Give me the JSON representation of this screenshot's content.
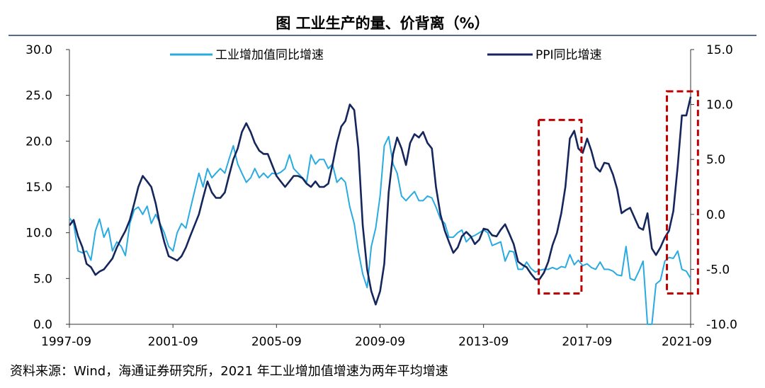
{
  "chart_data": {
    "type": "line",
    "title": "图  工业生产的量、价背离（%）",
    "source": "资料来源：Wind，海通证券研究所，2021 年工业增加值增速为两年平均增速",
    "x_ticks": [
      "1997-09",
      "2001-09",
      "2005-09",
      "2009-09",
      "2013-09",
      "2017-09",
      "2021-09"
    ],
    "x_tick_years": [
      1997.667,
      2001.667,
      2005.667,
      2009.667,
      2013.667,
      2017.667,
      2021.667
    ],
    "xlim": [
      1997.667,
      2021.667
    ],
    "y_left": {
      "label": "工业增加值同比增速",
      "ylim": [
        0,
        30
      ],
      "ticks": [
        "0.0",
        "5.0",
        "10.0",
        "15.0",
        "20.0",
        "25.0",
        "30.0"
      ]
    },
    "y_right": {
      "label": "PPI同比增速",
      "ylim": [
        -10,
        15
      ],
      "ticks": [
        "-10.0",
        "-5.0",
        "0.0",
        "5.0",
        "10.0",
        "15.0"
      ]
    },
    "series": [
      {
        "name": "工业增加值同比增速",
        "axis": "left",
        "color": "#29ABE2",
        "points": [
          [
            1997.67,
            11.6
          ],
          [
            1997.83,
            11.0
          ],
          [
            1998.0,
            8.0
          ],
          [
            1998.17,
            7.8
          ],
          [
            1998.33,
            8.0
          ],
          [
            1998.5,
            7.0
          ],
          [
            1998.67,
            10.2
          ],
          [
            1998.83,
            11.5
          ],
          [
            1999.0,
            9.5
          ],
          [
            1999.17,
            10.5
          ],
          [
            1999.33,
            8.0
          ],
          [
            1999.5,
            9.0
          ],
          [
            1999.67,
            8.5
          ],
          [
            1999.83,
            7.5
          ],
          [
            2000.0,
            11.0
          ],
          [
            2000.17,
            12.5
          ],
          [
            2000.33,
            12.8
          ],
          [
            2000.5,
            12.0
          ],
          [
            2000.67,
            12.9
          ],
          [
            2000.83,
            11.0
          ],
          [
            2001.0,
            12.0
          ],
          [
            2001.17,
            11.0
          ],
          [
            2001.33,
            10.0
          ],
          [
            2001.5,
            8.5
          ],
          [
            2001.67,
            8.0
          ],
          [
            2001.83,
            10.0
          ],
          [
            2002.0,
            11.0
          ],
          [
            2002.17,
            10.5
          ],
          [
            2002.33,
            12.5
          ],
          [
            2002.5,
            14.5
          ],
          [
            2002.67,
            16.5
          ],
          [
            2002.83,
            15.0
          ],
          [
            2003.0,
            17.0
          ],
          [
            2003.17,
            16.0
          ],
          [
            2003.33,
            16.5
          ],
          [
            2003.5,
            17.0
          ],
          [
            2003.67,
            16.5
          ],
          [
            2003.83,
            18.0
          ],
          [
            2004.0,
            19.5
          ],
          [
            2004.17,
            17.5
          ],
          [
            2004.33,
            16.5
          ],
          [
            2004.5,
            15.5
          ],
          [
            2004.67,
            16.0
          ],
          [
            2004.83,
            17.0
          ],
          [
            2005.0,
            16.0
          ],
          [
            2005.17,
            16.5
          ],
          [
            2005.33,
            16.0
          ],
          [
            2005.5,
            16.5
          ],
          [
            2005.67,
            16.4
          ],
          [
            2005.83,
            16.6
          ],
          [
            2006.0,
            17.0
          ],
          [
            2006.17,
            18.5
          ],
          [
            2006.33,
            17.0
          ],
          [
            2006.5,
            16.5
          ],
          [
            2006.67,
            16.0
          ],
          [
            2006.83,
            15.5
          ],
          [
            2007.0,
            18.5
          ],
          [
            2007.17,
            17.5
          ],
          [
            2007.33,
            18.0
          ],
          [
            2007.5,
            18.0
          ],
          [
            2007.67,
            17.0
          ],
          [
            2007.83,
            17.5
          ],
          [
            2008.0,
            15.5
          ],
          [
            2008.17,
            16.0
          ],
          [
            2008.33,
            15.5
          ],
          [
            2008.5,
            12.8
          ],
          [
            2008.67,
            11.0
          ],
          [
            2008.83,
            8.0
          ],
          [
            2009.0,
            5.5
          ],
          [
            2009.17,
            4.0
          ],
          [
            2009.33,
            8.5
          ],
          [
            2009.5,
            10.5
          ],
          [
            2009.67,
            14.0
          ],
          [
            2009.83,
            19.5
          ],
          [
            2010.0,
            20.5
          ],
          [
            2010.17,
            17.5
          ],
          [
            2010.33,
            16.5
          ],
          [
            2010.5,
            14.0
          ],
          [
            2010.67,
            13.5
          ],
          [
            2010.83,
            14.0
          ],
          [
            2011.0,
            14.5
          ],
          [
            2011.17,
            13.5
          ],
          [
            2011.33,
            13.5
          ],
          [
            2011.5,
            14.0
          ],
          [
            2011.67,
            13.8
          ],
          [
            2011.83,
            12.8
          ],
          [
            2012.0,
            11.5
          ],
          [
            2012.17,
            11.0
          ],
          [
            2012.33,
            9.5
          ],
          [
            2012.5,
            9.5
          ],
          [
            2012.67,
            10.0
          ],
          [
            2012.83,
            10.3
          ],
          [
            2013.0,
            9.0
          ],
          [
            2013.17,
            9.5
          ],
          [
            2013.33,
            9.7
          ],
          [
            2013.5,
            10.0
          ],
          [
            2013.67,
            10.3
          ],
          [
            2013.83,
            10.0
          ],
          [
            2014.0,
            8.6
          ],
          [
            2014.17,
            8.8
          ],
          [
            2014.33,
            9.0
          ],
          [
            2014.5,
            6.9
          ],
          [
            2014.67,
            8.0
          ],
          [
            2014.83,
            7.9
          ],
          [
            2015.0,
            6.0
          ],
          [
            2015.17,
            6.0
          ],
          [
            2015.33,
            6.8
          ],
          [
            2015.5,
            6.1
          ],
          [
            2015.67,
            5.7
          ],
          [
            2015.83,
            5.9
          ],
          [
            2016.0,
            6.0
          ],
          [
            2016.17,
            6.0
          ],
          [
            2016.33,
            6.2
          ],
          [
            2016.5,
            6.0
          ],
          [
            2016.67,
            6.3
          ],
          [
            2016.83,
            6.2
          ],
          [
            2017.0,
            7.6
          ],
          [
            2017.17,
            6.5
          ],
          [
            2017.33,
            7.0
          ],
          [
            2017.5,
            6.4
          ],
          [
            2017.67,
            6.6
          ],
          [
            2017.83,
            6.2
          ],
          [
            2018.0,
            6.0
          ],
          [
            2018.17,
            6.8
          ],
          [
            2018.33,
            6.0
          ],
          [
            2018.5,
            6.0
          ],
          [
            2018.67,
            5.8
          ],
          [
            2018.83,
            5.4
          ],
          [
            2019.0,
            5.3
          ],
          [
            2019.17,
            8.5
          ],
          [
            2019.33,
            5.0
          ],
          [
            2019.5,
            4.8
          ],
          [
            2019.67,
            5.8
          ],
          [
            2019.83,
            6.9
          ],
          [
            2020.0,
            0.0
          ],
          [
            2020.17,
            -1.1
          ],
          [
            2020.33,
            4.4
          ],
          [
            2020.5,
            4.8
          ],
          [
            2020.67,
            6.9
          ],
          [
            2020.83,
            7.3
          ],
          [
            2021.0,
            7.2
          ],
          [
            2021.17,
            8.0
          ],
          [
            2021.33,
            6.0
          ],
          [
            2021.5,
            5.8
          ],
          [
            2021.67,
            5.0
          ]
        ]
      },
      {
        "name": "PPI同比增速",
        "axis": "right",
        "color": "#14265C",
        "points": [
          [
            1997.67,
            -1.0
          ],
          [
            1997.83,
            -0.5
          ],
          [
            1998.0,
            -2.0
          ],
          [
            1998.17,
            -3.0
          ],
          [
            1998.33,
            -4.5
          ],
          [
            1998.5,
            -4.8
          ],
          [
            1998.67,
            -5.5
          ],
          [
            1998.83,
            -5.2
          ],
          [
            1999.0,
            -5.0
          ],
          [
            1999.17,
            -4.5
          ],
          [
            1999.33,
            -4.0
          ],
          [
            1999.5,
            -3.0
          ],
          [
            1999.67,
            -2.2
          ],
          [
            1999.83,
            -1.5
          ],
          [
            2000.0,
            -0.5
          ],
          [
            2000.17,
            1.0
          ],
          [
            2000.33,
            2.5
          ],
          [
            2000.5,
            3.5
          ],
          [
            2000.67,
            3.0
          ],
          [
            2000.83,
            2.5
          ],
          [
            2001.0,
            1.0
          ],
          [
            2001.17,
            -1.0
          ],
          [
            2001.33,
            -2.5
          ],
          [
            2001.5,
            -3.8
          ],
          [
            2001.67,
            -4.0
          ],
          [
            2001.83,
            -4.2
          ],
          [
            2002.0,
            -3.8
          ],
          [
            2002.17,
            -3.0
          ],
          [
            2002.33,
            -2.0
          ],
          [
            2002.5,
            -1.0
          ],
          [
            2002.67,
            0.0
          ],
          [
            2002.83,
            1.5
          ],
          [
            2003.0,
            3.0
          ],
          [
            2003.17,
            2.0
          ],
          [
            2003.33,
            1.5
          ],
          [
            2003.5,
            1.5
          ],
          [
            2003.67,
            2.0
          ],
          [
            2003.83,
            3.5
          ],
          [
            2004.0,
            5.0
          ],
          [
            2004.17,
            6.0
          ],
          [
            2004.33,
            7.5
          ],
          [
            2004.5,
            8.3
          ],
          [
            2004.67,
            7.5
          ],
          [
            2004.83,
            6.5
          ],
          [
            2005.0,
            5.8
          ],
          [
            2005.17,
            5.5
          ],
          [
            2005.33,
            5.5
          ],
          [
            2005.5,
            4.5
          ],
          [
            2005.67,
            3.5
          ],
          [
            2005.83,
            3.0
          ],
          [
            2006.0,
            2.5
          ],
          [
            2006.17,
            3.0
          ],
          [
            2006.33,
            3.5
          ],
          [
            2006.5,
            3.5
          ],
          [
            2006.67,
            3.3
          ],
          [
            2006.83,
            2.8
          ],
          [
            2007.0,
            2.5
          ],
          [
            2007.17,
            3.0
          ],
          [
            2007.33,
            2.5
          ],
          [
            2007.5,
            2.5
          ],
          [
            2007.67,
            2.8
          ],
          [
            2007.83,
            4.5
          ],
          [
            2008.0,
            6.5
          ],
          [
            2008.17,
            8.0
          ],
          [
            2008.33,
            8.5
          ],
          [
            2008.5,
            10.0
          ],
          [
            2008.67,
            9.5
          ],
          [
            2008.83,
            6.0
          ],
          [
            2009.0,
            -1.0
          ],
          [
            2009.17,
            -5.0
          ],
          [
            2009.33,
            -7.0
          ],
          [
            2009.5,
            -8.2
          ],
          [
            2009.67,
            -7.0
          ],
          [
            2009.83,
            -4.5
          ],
          [
            2010.0,
            2.0
          ],
          [
            2010.17,
            5.5
          ],
          [
            2010.33,
            7.0
          ],
          [
            2010.5,
            6.0
          ],
          [
            2010.67,
            4.5
          ],
          [
            2010.83,
            6.5
          ],
          [
            2011.0,
            7.3
          ],
          [
            2011.17,
            7.0
          ],
          [
            2011.33,
            7.5
          ],
          [
            2011.5,
            6.5
          ],
          [
            2011.67,
            6.0
          ],
          [
            2011.83,
            2.5
          ],
          [
            2012.0,
            0.0
          ],
          [
            2012.17,
            -1.5
          ],
          [
            2012.33,
            -2.5
          ],
          [
            2012.5,
            -3.5
          ],
          [
            2012.67,
            -3.0
          ],
          [
            2012.83,
            -2.0
          ],
          [
            2013.0,
            -1.6
          ],
          [
            2013.17,
            -2.0
          ],
          [
            2013.33,
            -2.7
          ],
          [
            2013.5,
            -2.3
          ],
          [
            2013.67,
            -1.3
          ],
          [
            2013.83,
            -1.4
          ],
          [
            2014.0,
            -1.9
          ],
          [
            2014.17,
            -2.0
          ],
          [
            2014.33,
            -1.4
          ],
          [
            2014.5,
            -0.9
          ],
          [
            2014.67,
            -1.8
          ],
          [
            2014.83,
            -2.7
          ],
          [
            2015.0,
            -4.3
          ],
          [
            2015.17,
            -4.6
          ],
          [
            2015.33,
            -4.8
          ],
          [
            2015.5,
            -5.4
          ],
          [
            2015.67,
            -5.9
          ],
          [
            2015.83,
            -5.9
          ],
          [
            2016.0,
            -5.3
          ],
          [
            2016.17,
            -4.3
          ],
          [
            2016.33,
            -2.8
          ],
          [
            2016.5,
            -1.7
          ],
          [
            2016.67,
            0.1
          ],
          [
            2016.83,
            2.5
          ],
          [
            2017.0,
            6.9
          ],
          [
            2017.17,
            7.6
          ],
          [
            2017.33,
            6.0
          ],
          [
            2017.5,
            5.6
          ],
          [
            2017.67,
            6.9
          ],
          [
            2017.83,
            5.8
          ],
          [
            2018.0,
            4.3
          ],
          [
            2018.17,
            3.9
          ],
          [
            2018.33,
            4.7
          ],
          [
            2018.5,
            4.6
          ],
          [
            2018.67,
            3.6
          ],
          [
            2018.83,
            2.3
          ],
          [
            2019.0,
            0.1
          ],
          [
            2019.17,
            0.4
          ],
          [
            2019.33,
            0.6
          ],
          [
            2019.5,
            -0.3
          ],
          [
            2019.67,
            -1.2
          ],
          [
            2019.83,
            -1.4
          ],
          [
            2020.0,
            0.1
          ],
          [
            2020.17,
            -3.1
          ],
          [
            2020.33,
            -3.7
          ],
          [
            2020.5,
            -3.0
          ],
          [
            2020.67,
            -2.1
          ],
          [
            2020.83,
            -1.5
          ],
          [
            2021.0,
            0.3
          ],
          [
            2021.17,
            4.4
          ],
          [
            2021.33,
            9.0
          ],
          [
            2021.5,
            9.0
          ],
          [
            2021.67,
            10.7
          ]
        ]
      }
    ],
    "annotations": [
      {
        "type": "dashed-box",
        "color": "#C00000",
        "x_range": [
          2015.8,
          2017.45
        ],
        "y_right_range": [
          -7.2,
          8.6
        ]
      },
      {
        "type": "dashed-box",
        "color": "#C00000",
        "x_range": [
          2020.75,
          2021.95
        ],
        "y_right_range": [
          -7.2,
          11.2
        ]
      }
    ]
  }
}
